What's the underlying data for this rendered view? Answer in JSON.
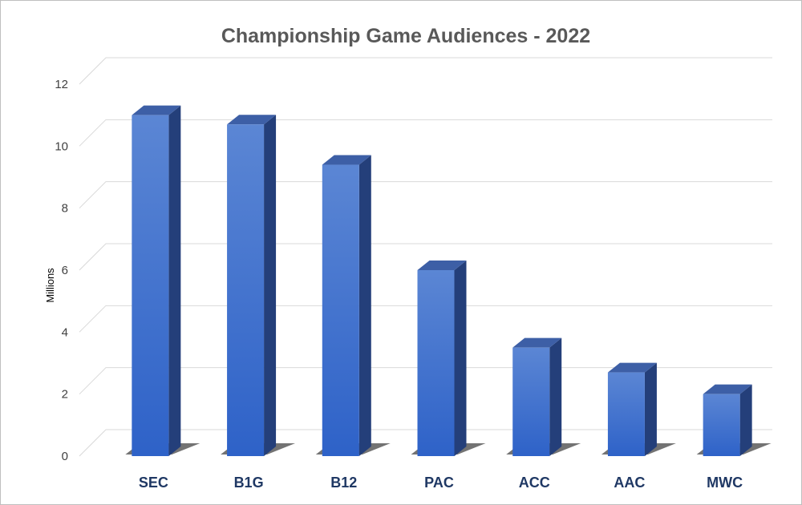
{
  "chart_data": {
    "type": "bar",
    "title": "Championship Game Audiences - 2022",
    "xlabel": "",
    "ylabel": "Millions",
    "categories": [
      "SEC",
      "B1G",
      "B12",
      "PAC",
      "ACC",
      "AAC",
      "MWC"
    ],
    "values": [
      11.0,
      10.7,
      9.4,
      6.0,
      3.5,
      2.7,
      2.0
    ],
    "ylim": [
      0,
      12
    ],
    "yticks": [
      "0",
      "2",
      "4",
      "6",
      "8",
      "10",
      "12"
    ],
    "grid": true,
    "three_d": true,
    "colors": {
      "bar_front_top": "#5b86d4",
      "bar_front_bottom": "#2e62c8",
      "bar_side": "#243f7a",
      "bar_top": "#3d5fa6",
      "category_text": "#1f3864"
    }
  }
}
